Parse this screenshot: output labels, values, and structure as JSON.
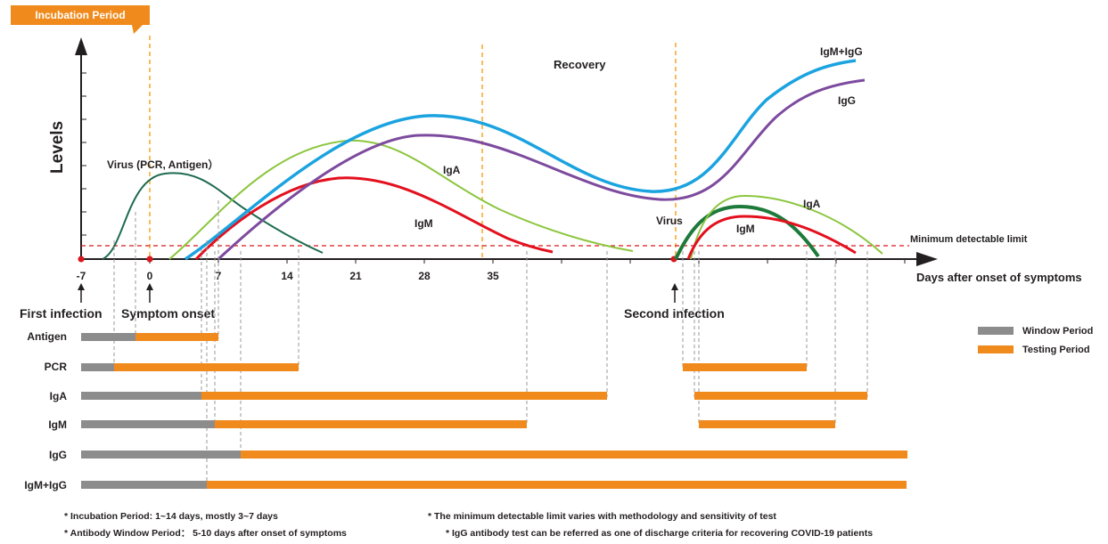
{
  "badge": {
    "text": "Incubation Period",
    "color": "#f08a1c"
  },
  "axes": {
    "y_label": "Levels",
    "x_label": "Days after onset of symptoms"
  },
  "ticks": [
    "-7",
    "0",
    "7",
    "14",
    "21",
    "28",
    "35"
  ],
  "events": {
    "first_infection": "First infection",
    "symptom_onset": "Symptom onset",
    "second_infection": "Second infection"
  },
  "curve_labels": {
    "virus1": "Virus (PCR, Antigen）",
    "virus2": "Virus",
    "iga1": "IgA",
    "igm1": "IgM",
    "iga2": "IgA",
    "igm2": "IgM",
    "igg": "IgG",
    "igmigg": "IgM+IgG",
    "recovery": "Recovery",
    "min_limit": "Minimum detectable limit"
  },
  "colors": {
    "virus": "#1e6b4f",
    "virus2": "#1e7a3a",
    "iga": "#8cc63f",
    "igm": "#e3101e",
    "igg": "#7d4a9e",
    "igmigg": "#1ba3e0",
    "window": "#8c8c8c",
    "testing": "#f08a1c",
    "limit": "#d9161c",
    "guide": "#f5a623"
  },
  "legend": {
    "window": "Window Period",
    "testing": "Testing Period"
  },
  "rows": [
    {
      "name": "Antigen"
    },
    {
      "name": "PCR"
    },
    {
      "name": "IgA"
    },
    {
      "name": "IgM"
    },
    {
      "name": "IgG"
    },
    {
      "name": "IgM+IgG"
    }
  ],
  "notes": {
    "n1": "* Incubation Period: 1~14 days, mostly 3~7 days",
    "n2": "* Antibody Window Period： 5-10 days after onset of symptoms",
    "n3": "* The minimum detectable limit varies with methodology and sensitivity of test",
    "n4": "* IgG antibody test can be referred as one of discharge criteria for recovering COVID-19 patients"
  }
}
